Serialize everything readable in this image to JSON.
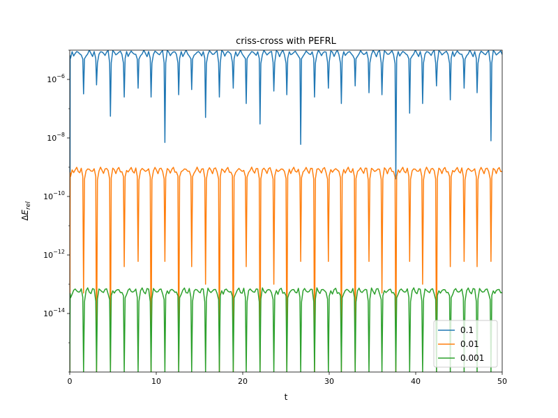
{
  "chart_data": {
    "type": "line",
    "title": "criss-cross with PEFRL",
    "xlabel": "t",
    "ylabel": "ΔE_rel",
    "y_scale": "log",
    "xlim": [
      0,
      50
    ],
    "ylim": [
      1e-16,
      1e-05
    ],
    "x_ticks": [
      0,
      10,
      20,
      30,
      40,
      50
    ],
    "y_ticks": [
      {
        "value": 1e-06,
        "mantissa": "10",
        "exponent": "−6"
      },
      {
        "value": 1e-08,
        "mantissa": "10",
        "exponent": "−8"
      },
      {
        "value": 1e-10,
        "mantissa": "10",
        "exponent": "−10"
      },
      {
        "value": 1e-12,
        "mantissa": "10",
        "exponent": "−12"
      },
      {
        "value": 1e-14,
        "mantissa": "10",
        "exponent": "−14"
      }
    ],
    "dip_times": [
      1.6,
      3.1,
      4.7,
      6.3,
      7.9,
      9.4,
      11.0,
      12.6,
      14.1,
      15.7,
      17.3,
      18.9,
      20.4,
      22.0,
      23.6,
      25.1,
      26.7,
      28.3,
      29.9,
      31.4,
      33.0,
      34.6,
      36.1,
      37.7,
      39.3,
      40.8,
      42.4,
      44.0,
      45.6,
      47.1,
      48.7
    ],
    "series": [
      {
        "name": "0.1",
        "color": "#1f77b4",
        "plateau": 8e-06,
        "dips": [
          3.2e-07,
          6.5e-07,
          5.5e-08,
          2.5e-07,
          5e-07,
          2.5e-07,
          7e-09,
          3e-07,
          4.5e-07,
          5e-08,
          2.5e-07,
          5e-07,
          1.5e-07,
          3e-08,
          4e-07,
          3e-07,
          6e-09,
          2.5e-07,
          5e-07,
          1.5e-07,
          6e-07,
          3.5e-07,
          3e-07,
          4e-10,
          7e-08,
          1.5e-07,
          6e-07,
          2e-07,
          5e-07,
          3.5e-07,
          8e-09
        ]
      },
      {
        "name": "0.01",
        "color": "#ff7f0e",
        "plateau": 8e-10,
        "dips": [
          5e-14,
          1e-16,
          1e-16,
          4e-13,
          6e-13,
          1e-16,
          6e-13,
          1e-16,
          4e-13,
          1e-13,
          1e-16,
          1e-16,
          4e-13,
          1e-16,
          1e-13,
          1e-16,
          6e-13,
          1e-16,
          6e-13,
          1e-16,
          1e-16,
          6e-13,
          5e-14,
          1e-16,
          6e-13,
          1e-13,
          1e-16,
          4e-13,
          6e-13,
          4e-13,
          6e-13
        ]
      },
      {
        "name": "0.001",
        "color": "#2ca02c",
        "plateau": 6e-14,
        "dips": [
          1e-16,
          1e-16,
          1e-16,
          1e-16,
          1e-16,
          1e-16,
          1e-16,
          1e-16,
          1e-16,
          1e-16,
          1e-16,
          1e-16,
          1e-16,
          1e-16,
          1e-16,
          1e-16,
          1e-16,
          1e-16,
          1e-16,
          1e-16,
          1e-16,
          1e-16,
          1e-16,
          1e-16,
          1e-16,
          1e-16,
          1e-16,
          1e-16,
          1e-16,
          1e-16,
          1e-16
        ]
      }
    ],
    "legend": {
      "position": "lower right",
      "entries": [
        "0.1",
        "0.01",
        "0.001"
      ]
    },
    "grid": false
  }
}
